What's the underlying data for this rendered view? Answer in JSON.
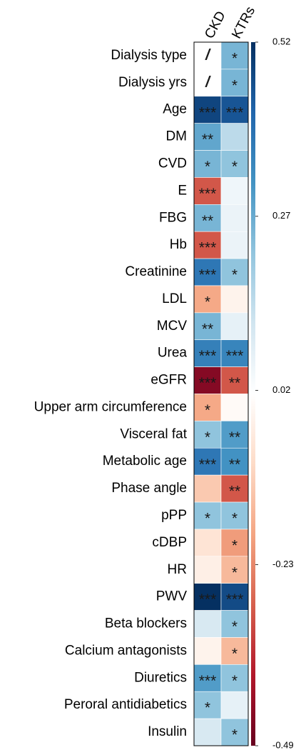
{
  "chart_data": {
    "type": "heatmap",
    "categories": [
      "Dialysis type",
      "Dialysis yrs",
      "Age",
      "DM",
      "CVD",
      "E",
      "FBG",
      "Hb",
      "Creatinine",
      "LDL",
      "MCV",
      "Urea",
      "eGFR",
      "Upper arm circumference",
      "Visceral fat",
      "Metabolic age",
      "Phase angle",
      "pPP",
      "cDBP",
      "HR",
      "PWV",
      "Beta blockers",
      "Calcium antagonists",
      "Diuretics",
      "Peroral antidiabetics",
      "Insulin"
    ],
    "series": [
      {
        "name": "CKD",
        "values": [
          null,
          null,
          0.48,
          0.28,
          0.25,
          -0.3,
          0.25,
          -0.3,
          0.38,
          -0.18,
          0.25,
          0.36,
          -0.45,
          -0.18,
          0.22,
          0.38,
          -0.12,
          0.22,
          -0.06,
          -0.03,
          0.52,
          0.1,
          -0.02,
          0.3,
          0.22,
          0.1
        ],
        "significance": [
          "/",
          "/",
          "***",
          "**",
          "*",
          "***",
          "**",
          "***",
          "***",
          "*",
          "**",
          "***",
          "***",
          "*",
          "*",
          "***",
          null,
          "*",
          null,
          null,
          "***",
          null,
          null,
          "***",
          "*",
          null
        ]
      },
      {
        "name": "KTRs",
        "values": [
          0.25,
          0.25,
          0.45,
          0.15,
          0.22,
          0.05,
          0.06,
          0.06,
          0.22,
          -0.02,
          0.07,
          0.35,
          -0.3,
          0.0,
          0.3,
          0.32,
          -0.3,
          0.22,
          -0.2,
          -0.15,
          0.47,
          0.22,
          -0.15,
          0.22,
          0.07,
          0.22
        ],
        "significance": [
          "*",
          "*",
          "***",
          null,
          "*",
          null,
          null,
          null,
          "*",
          null,
          null,
          "***",
          "**",
          null,
          "**",
          "**",
          "**",
          "*",
          "*",
          "*",
          "***",
          "*",
          "*",
          "*",
          null,
          "*"
        ]
      }
    ],
    "zlim": [
      -0.49,
      0.52
    ],
    "zticks": [
      0.52,
      0.27,
      0.02,
      -0.23,
      -0.49
    ],
    "colors": [
      "#67001f",
      "#b2182b",
      "#d6604d",
      "#f4a582",
      "#fddbc7",
      "#ffffff",
      "#d1e5f0",
      "#92c5de",
      "#4393c3",
      "#2166ac",
      "#053061"
    ]
  }
}
